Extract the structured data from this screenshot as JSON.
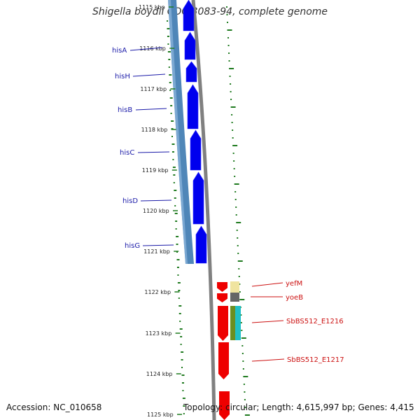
{
  "title": "Shigella boydii CDC 3083-94, complete genome",
  "footer": {
    "accession": "Accession: NC_010658",
    "summary": "Topology: circular; Length: 4,615,997 bp; Genes: 4,415"
  },
  "kbp_labels": [
    "1115 kbp",
    "1116 kbp",
    "1117 kbp",
    "1118 kbp",
    "1119 kbp",
    "1120 kbp",
    "1121 kbp",
    "1122 kbp",
    "1123 kbp",
    "1124 kbp",
    "1125 kbp"
  ],
  "genes_left": [
    {
      "name": "hisA",
      "color": "#0000ee"
    },
    {
      "name": "hisH",
      "color": "#0000ee"
    },
    {
      "name": "hisB",
      "color": "#0000ee"
    },
    {
      "name": "hisC",
      "color": "#0000ee"
    },
    {
      "name": "hisD",
      "color": "#0000ee"
    },
    {
      "name": "hisG",
      "color": "#0000ee"
    }
  ],
  "genes_right": [
    {
      "name": "yefM",
      "color": "#ee0000"
    },
    {
      "name": "yoeB",
      "color": "#ee0000"
    },
    {
      "name": "SbBS512_E1216",
      "color": "#ee0000"
    },
    {
      "name": "SbBS512_E1217",
      "color": "#ee0000"
    }
  ],
  "colors": {
    "operon": "#4f86b8",
    "forward_gene": "#0000ee",
    "reverse_gene": "#ee0000",
    "backbone": "#808080",
    "gc_marks": "#1f7a1f"
  }
}
